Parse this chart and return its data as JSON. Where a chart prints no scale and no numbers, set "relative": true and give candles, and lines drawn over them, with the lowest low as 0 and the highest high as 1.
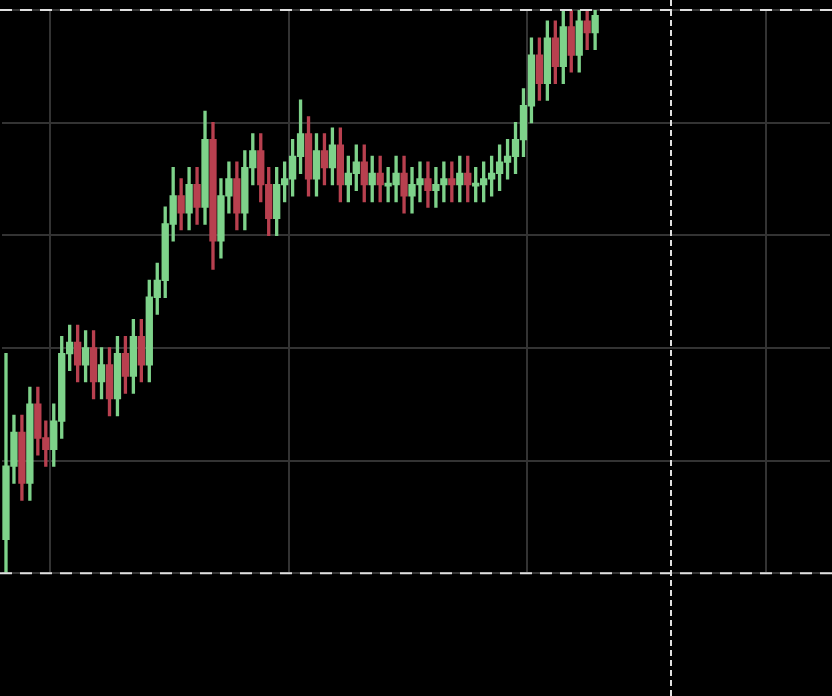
{
  "chart_data": {
    "type": "candlestick",
    "relative": true,
    "grid": true,
    "legend": false,
    "categories": [
      null,
      null,
      null,
      null,
      null,
      null,
      null,
      null,
      null,
      null,
      null,
      null,
      null,
      null,
      null,
      null,
      null,
      null,
      null,
      null,
      null,
      null,
      null,
      null,
      null,
      null,
      null,
      null,
      null,
      null,
      null,
      null,
      null,
      null,
      null,
      null,
      null,
      null,
      null,
      null,
      null,
      null,
      null,
      null,
      null,
      null,
      null,
      null,
      null,
      null,
      null,
      null,
      null,
      null,
      null,
      null,
      null,
      null,
      null,
      null,
      null,
      null,
      null,
      null,
      null,
      null,
      null,
      null,
      null,
      null,
      null,
      null,
      null,
      null,
      null,
      null,
      null,
      null,
      null,
      null,
      null,
      null,
      null,
      null,
      null,
      null,
      null,
      null,
      null,
      null,
      null,
      null,
      null,
      null,
      null,
      null,
      null,
      null,
      null,
      null,
      null,
      null,
      null,
      null
    ],
    "ohlc": [
      [
        0.06,
        0.39,
        0,
        0.19
      ],
      [
        0.19,
        0.28,
        0.16,
        0.25
      ],
      [
        0.25,
        0.28,
        0.13,
        0.16
      ],
      [
        0.16,
        0.33,
        0.13,
        0.3
      ],
      [
        0.3,
        0.33,
        0.21,
        0.24
      ],
      [
        0.24,
        0.27,
        0.19,
        0.22
      ],
      [
        0.22,
        0.3,
        0.19,
        0.27
      ],
      [
        0.27,
        0.42,
        0.24,
        0.39
      ],
      [
        0.39,
        0.44,
        0.36,
        0.41
      ],
      [
        0.41,
        0.44,
        0.34,
        0.37
      ],
      [
        0.37,
        0.43,
        0.34,
        0.4
      ],
      [
        0.4,
        0.43,
        0.31,
        0.34
      ],
      [
        0.34,
        0.4,
        0.31,
        0.37
      ],
      [
        0.37,
        0.4,
        0.28,
        0.31
      ],
      [
        0.31,
        0.42,
        0.28,
        0.39
      ],
      [
        0.39,
        0.42,
        0.32,
        0.35
      ],
      [
        0.35,
        0.45,
        0.32,
        0.42
      ],
      [
        0.42,
        0.45,
        0.34,
        0.37
      ],
      [
        0.37,
        0.52,
        0.34,
        0.49
      ],
      [
        0.49,
        0.55,
        0.46,
        0.52
      ],
      [
        0.52,
        0.65,
        0.49,
        0.62
      ],
      [
        0.62,
        0.72,
        0.59,
        0.67
      ],
      [
        0.67,
        0.7,
        0.61,
        0.64
      ],
      [
        0.64,
        0.72,
        0.61,
        0.69
      ],
      [
        0.69,
        0.72,
        0.62,
        0.65
      ],
      [
        0.65,
        0.82,
        0.62,
        0.77
      ],
      [
        0.77,
        0.8,
        0.54,
        0.59
      ],
      [
        0.59,
        0.7,
        0.56,
        0.67
      ],
      [
        0.67,
        0.73,
        0.64,
        0.7
      ],
      [
        0.7,
        0.73,
        0.61,
        0.64
      ],
      [
        0.64,
        0.75,
        0.61,
        0.72
      ],
      [
        0.72,
        0.78,
        0.69,
        0.75
      ],
      [
        0.75,
        0.78,
        0.66,
        0.69
      ],
      [
        0.69,
        0.72,
        0.6,
        0.63
      ],
      [
        0.63,
        0.72,
        0.6,
        0.69
      ],
      [
        0.69,
        0.73,
        0.66,
        0.7
      ],
      [
        0.7,
        0.77,
        0.67,
        0.74
      ],
      [
        0.74,
        0.84,
        0.71,
        0.78
      ],
      [
        0.78,
        0.81,
        0.67,
        0.7
      ],
      [
        0.7,
        0.78,
        0.67,
        0.75
      ],
      [
        0.75,
        0.78,
        0.69,
        0.72
      ],
      [
        0.72,
        0.79,
        0.69,
        0.76
      ],
      [
        0.76,
        0.79,
        0.66,
        0.69
      ],
      [
        0.69,
        0.74,
        0.66,
        0.71
      ],
      [
        0.71,
        0.76,
        0.68,
        0.73
      ],
      [
        0.73,
        0.76,
        0.66,
        0.69
      ],
      [
        0.69,
        0.74,
        0.66,
        0.71
      ],
      [
        0.71,
        0.74,
        0.66,
        0.69
      ],
      [
        0.69,
        0.72,
        0.66,
        0.69
      ],
      [
        0.69,
        0.74,
        0.66,
        0.71
      ],
      [
        0.71,
        0.74,
        0.64,
        0.67
      ],
      [
        0.67,
        0.72,
        0.64,
        0.69
      ],
      [
        0.69,
        0.73,
        0.66,
        0.7
      ],
      [
        0.7,
        0.73,
        0.65,
        0.68
      ],
      [
        0.68,
        0.72,
        0.65,
        0.69
      ],
      [
        0.69,
        0.73,
        0.66,
        0.7
      ],
      [
        0.7,
        0.73,
        0.66,
        0.69
      ],
      [
        0.69,
        0.74,
        0.66,
        0.71
      ],
      [
        0.71,
        0.74,
        0.66,
        0.69
      ],
      [
        0.69,
        0.72,
        0.66,
        0.69
      ],
      [
        0.69,
        0.73,
        0.66,
        0.7
      ],
      [
        0.7,
        0.74,
        0.67,
        0.71
      ],
      [
        0.71,
        0.76,
        0.68,
        0.73
      ],
      [
        0.73,
        0.77,
        0.7,
        0.74
      ],
      [
        0.74,
        0.8,
        0.71,
        0.77
      ],
      [
        0.77,
        0.86,
        0.74,
        0.83
      ],
      [
        0.83,
        0.95,
        0.8,
        0.92
      ],
      [
        0.92,
        0.95,
        0.84,
        0.87
      ],
      [
        0.87,
        0.98,
        0.84,
        0.95
      ],
      [
        0.95,
        0.98,
        0.87,
        0.9
      ],
      [
        0.9,
        1,
        0.87,
        0.97
      ],
      [
        0.97,
        1,
        0.89,
        0.92
      ],
      [
        0.92,
        1,
        0.89,
        0.98
      ],
      [
        0.98,
        1,
        0.93,
        0.96
      ],
      [
        0.96,
        1,
        0.93,
        0.99
      ],
      null,
      null,
      null,
      null,
      null,
      null,
      null,
      null,
      null,
      null,
      null,
      null,
      null,
      null,
      null,
      null,
      null,
      null,
      null,
      null,
      null,
      null,
      null,
      null,
      null,
      null,
      null,
      null,
      null
    ],
    "colors": [
      "#7ed28a",
      "#7ed28a",
      "#b8404f",
      "#7ed28a",
      "#b8404f",
      "#b8404f",
      "#7ed28a",
      "#7ed28a",
      "#7ed28a",
      "#b8404f",
      "#7ed28a",
      "#b8404f",
      "#7ed28a",
      "#b8404f",
      "#7ed28a",
      "#b8404f",
      "#7ed28a",
      "#b8404f",
      "#7ed28a",
      "#7ed28a",
      "#7ed28a",
      "#7ed28a",
      "#b8404f",
      "#7ed28a",
      "#b8404f",
      "#7ed28a",
      "#b8404f",
      "#7ed28a",
      "#7ed28a",
      "#b8404f",
      "#7ed28a",
      "#7ed28a",
      "#b8404f",
      "#b8404f",
      "#7ed28a",
      "#7ed28a",
      "#7ed28a",
      "#7ed28a",
      "#b8404f",
      "#7ed28a",
      "#b8404f",
      "#7ed28a",
      "#b8404f",
      "#7ed28a",
      "#7ed28a",
      "#b8404f",
      "#7ed28a",
      "#b8404f",
      "#7ed28a",
      "#7ed28a",
      "#b8404f",
      "#7ed28a",
      "#7ed28a",
      "#b8404f",
      "#7ed28a",
      "#7ed28a",
      "#b8404f",
      "#7ed28a",
      "#b8404f",
      "#7ed28a",
      "#7ed28a",
      "#7ed28a",
      "#7ed28a",
      "#7ed28a",
      "#7ed28a",
      "#7ed28a",
      "#7ed28a",
      "#b8404f",
      "#7ed28a",
      "#b8404f",
      "#7ed28a",
      "#b8404f",
      "#7ed28a",
      "#b8404f",
      "#7ed28a",
      null,
      null,
      null,
      null,
      null,
      null,
      null,
      null,
      null,
      null,
      null,
      null,
      null,
      null,
      null,
      null,
      null,
      null,
      null,
      null,
      null,
      null,
      null,
      null,
      null,
      null,
      null,
      null,
      null
    ],
    "ref_lines": [
      {
        "axis": "y",
        "value": 1,
        "color": "#e0e0e0",
        "line_style": "dashed"
      },
      {
        "axis": "y",
        "value": 0,
        "color": "#e0e0e0",
        "line_style": "dashed"
      }
    ]
  }
}
